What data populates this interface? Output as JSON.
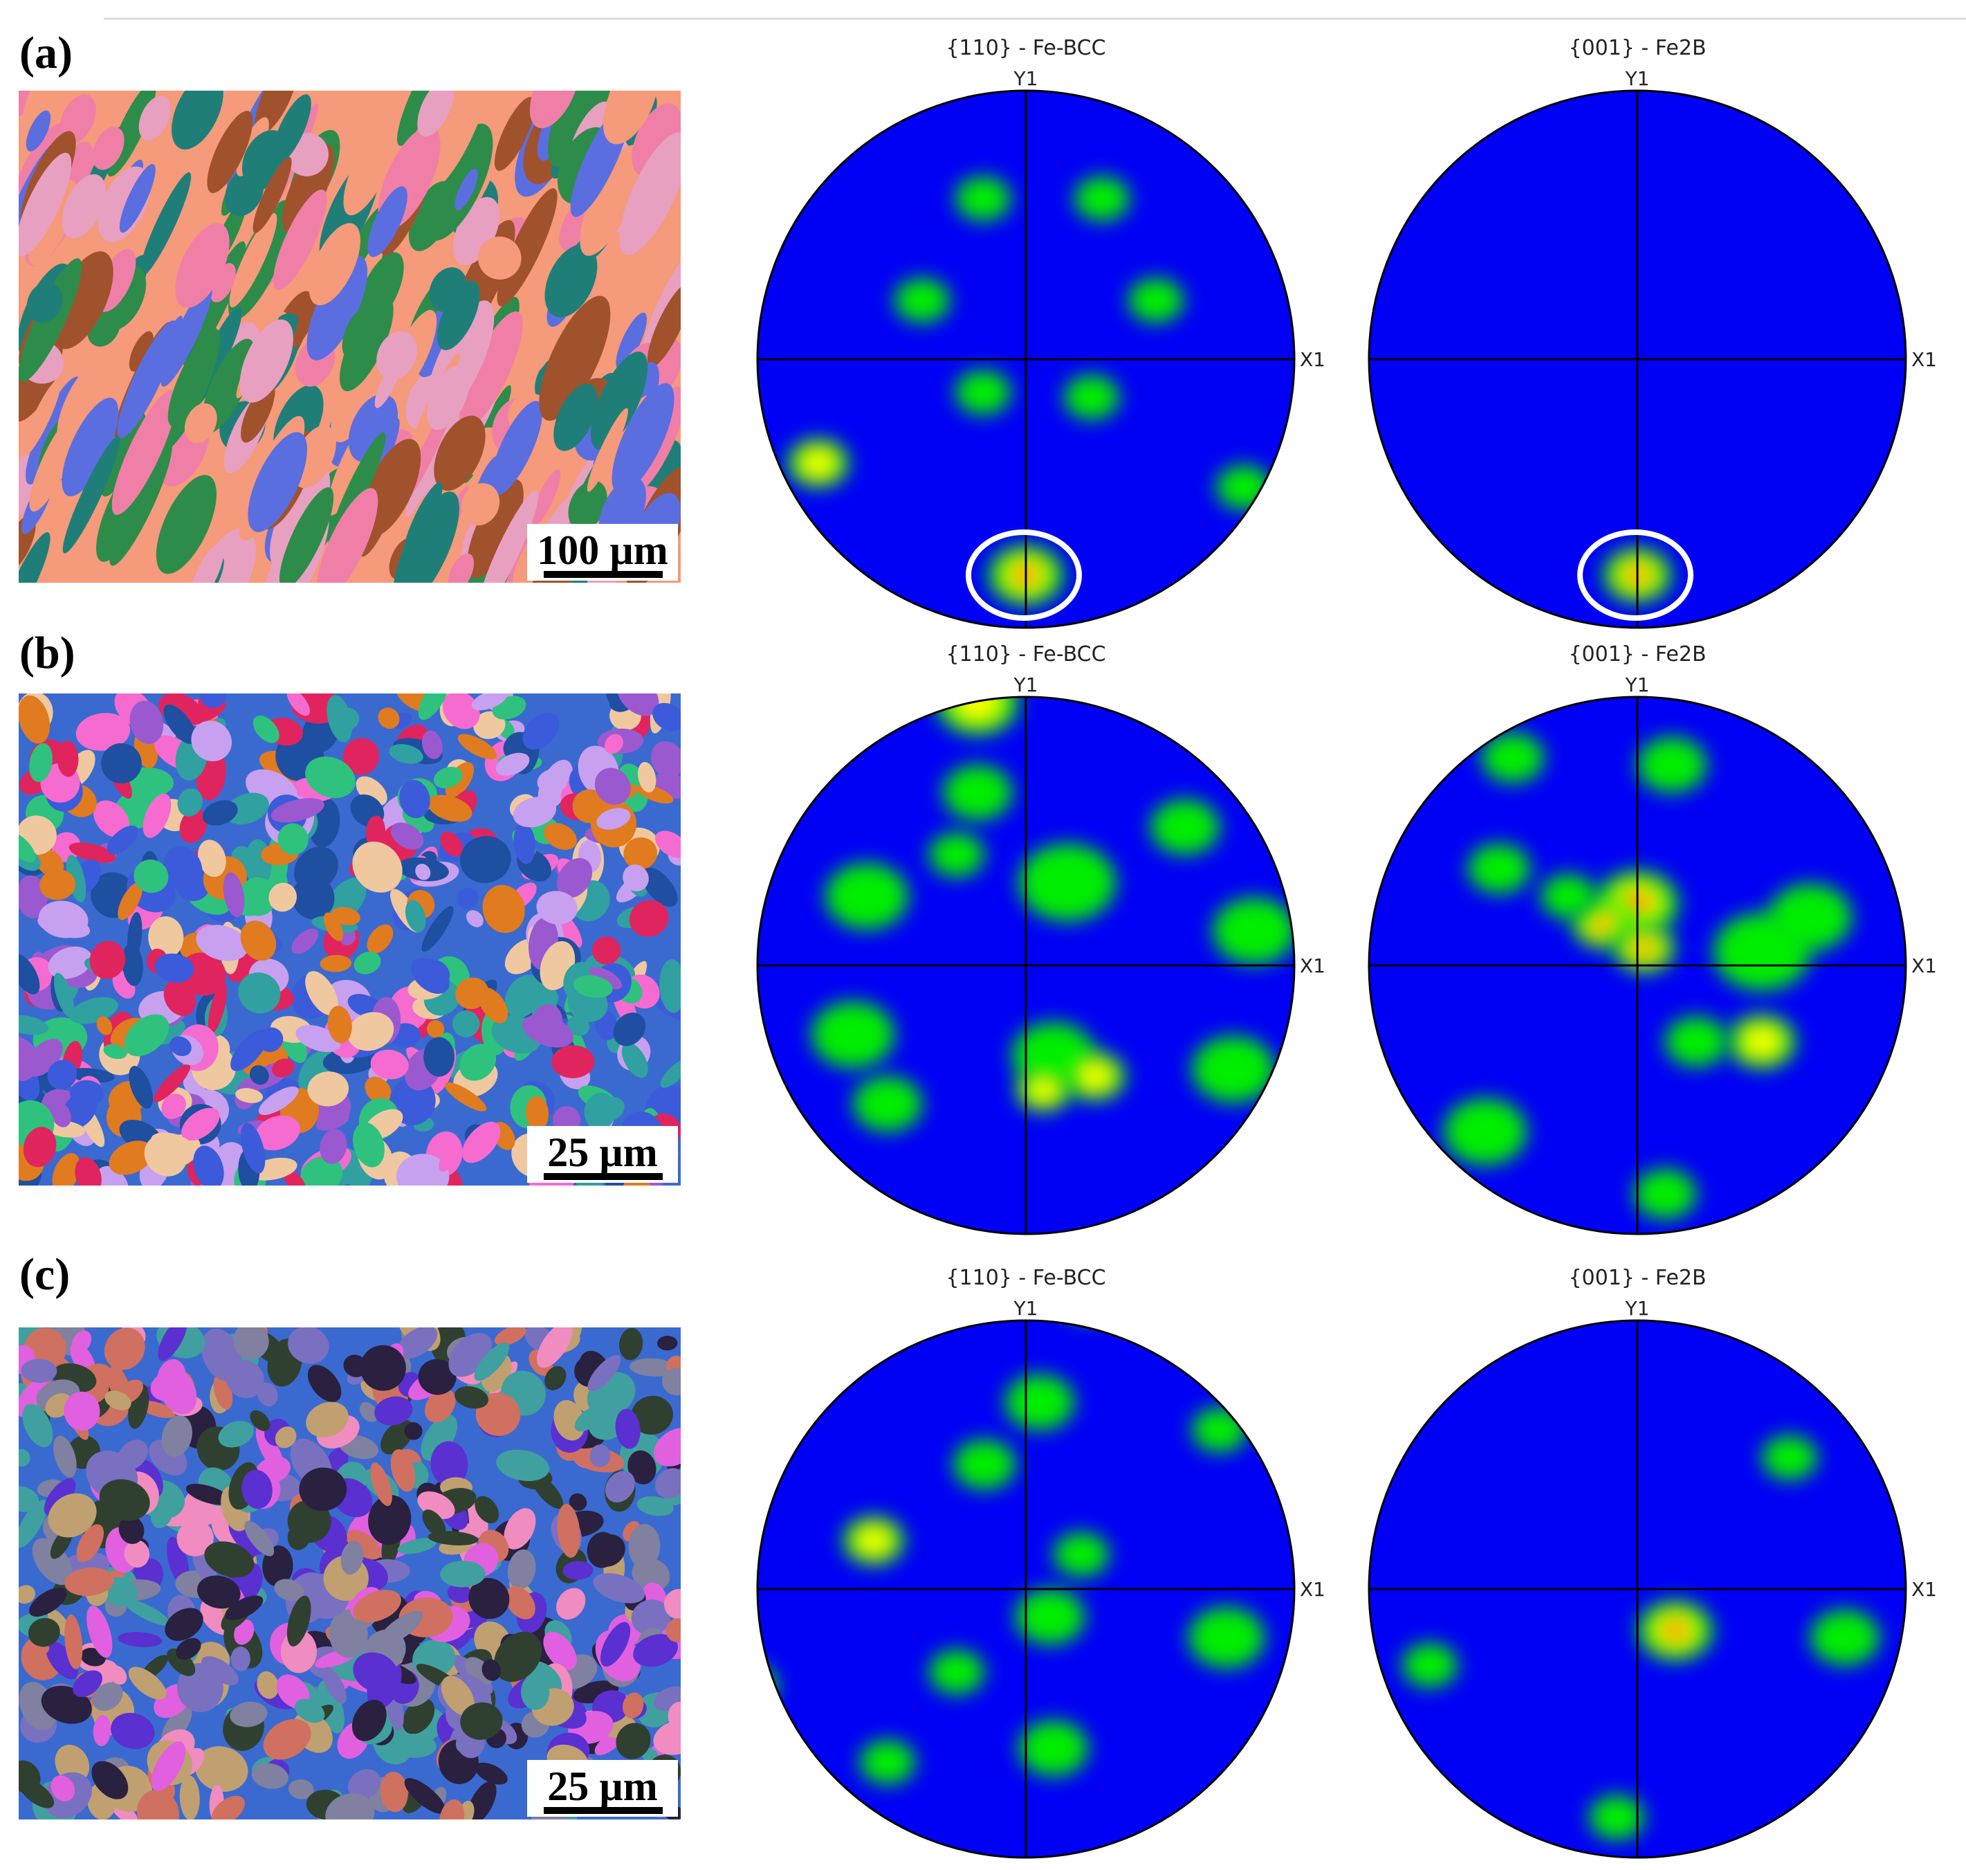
{
  "figure": {
    "rows": [
      {
        "label": "(a)",
        "scale_bar": "100 µm",
        "map_palette": [
          "#f59a7a",
          "#f07fa8",
          "#1f7f78",
          "#2e8c4a",
          "#5b6ee0",
          "#a0522d",
          "#e8a0c0"
        ],
        "pole_figures": [
          {
            "title": "{110} - Fe-BCC",
            "y_axis": "Y1",
            "x_axis": "X1",
            "highlight_circle": true
          },
          {
            "title": "{001} - Fe2B",
            "y_axis": "Y1",
            "x_axis": "X1",
            "highlight_circle": true
          }
        ]
      },
      {
        "label": "(b)",
        "scale_bar": "25 µm",
        "map_palette": [
          "#e0245e",
          "#2ec27e",
          "#f56bd0",
          "#3b5bdb",
          "#c8a0f0",
          "#e07b20",
          "#9b59d0",
          "#f0c8a0",
          "#30a0a0",
          "#1e4fa0"
        ],
        "pole_figures": [
          {
            "title": "{110} - Fe-BCC",
            "y_axis": "Y1",
            "x_axis": "X1",
            "highlight_circle": false
          },
          {
            "title": "{001} - Fe2B",
            "y_axis": "Y1",
            "x_axis": "X1",
            "highlight_circle": false
          }
        ]
      },
      {
        "label": "(c)",
        "scale_bar": "25 µm",
        "map_palette": [
          "#7a70c0",
          "#5a30d0",
          "#f08cc0",
          "#d07060",
          "#304030",
          "#2a2040",
          "#8080a0",
          "#e060e0",
          "#40a0a0",
          "#c0a070"
        ],
        "pole_figures": [
          {
            "title": "{110} - Fe-BCC",
            "y_axis": "Y1",
            "x_axis": "X1",
            "highlight_circle": false
          },
          {
            "title": "{001} - Fe2B",
            "y_axis": "Y1",
            "x_axis": "X1",
            "highlight_circle": false
          }
        ]
      }
    ],
    "colors": {
      "pole_background": "#0000f5",
      "low": "#00ee00",
      "mid": "#ffff00",
      "high": "#ff0000",
      "highlight": "#ffffff"
    }
  }
}
